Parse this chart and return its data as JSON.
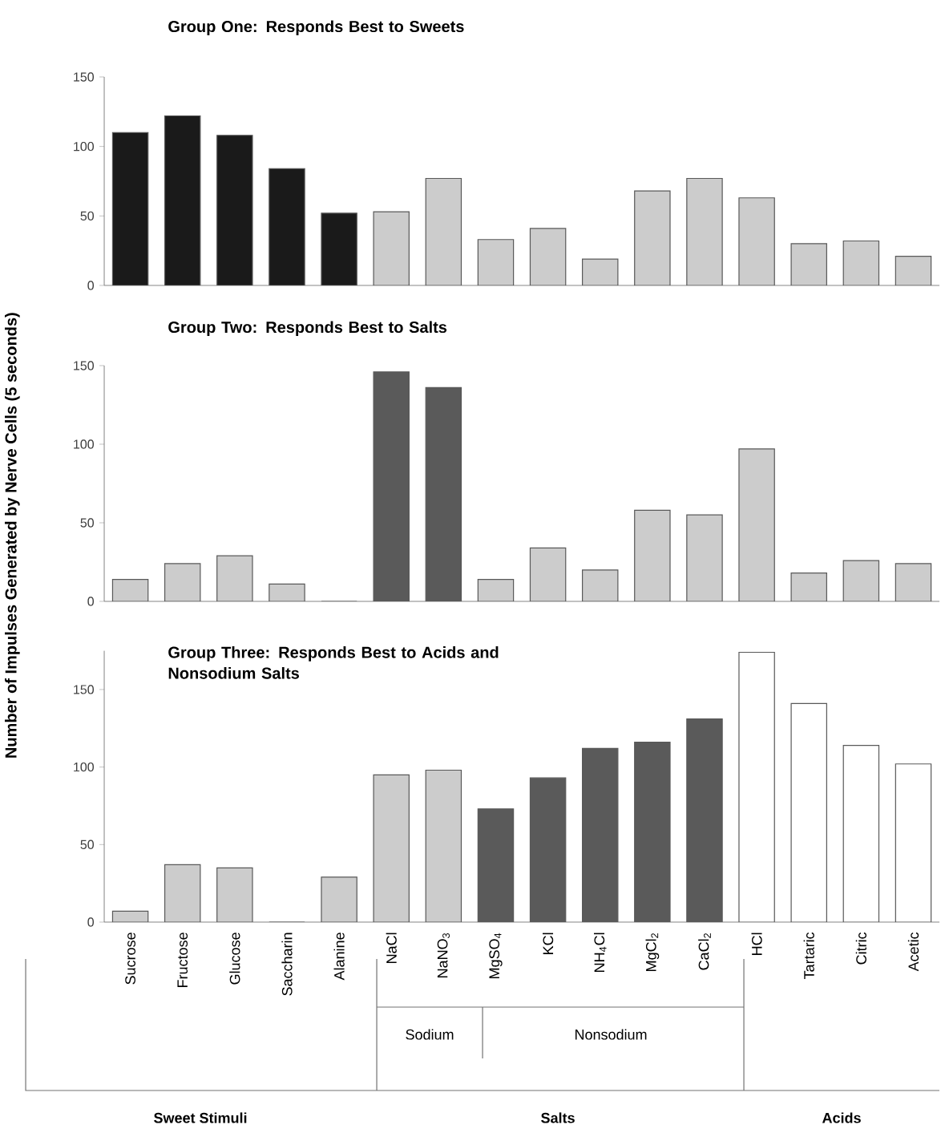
{
  "chart_data": [
    {
      "type": "bar",
      "title": "Group One: Responds Best to Sweets",
      "values": [
        110,
        122,
        108,
        84,
        52,
        53,
        77,
        33,
        41,
        19,
        68,
        77,
        63,
        30,
        32,
        21
      ],
      "colors": [
        "#1a1a1a",
        "#1a1a1a",
        "#1a1a1a",
        "#1a1a1a",
        "#1a1a1a",
        "#cccccc",
        "#cccccc",
        "#cccccc",
        "#cccccc",
        "#cccccc",
        "#cccccc",
        "#cccccc",
        "#cccccc",
        "#cccccc",
        "#cccccc",
        "#cccccc"
      ],
      "ylim": [
        0,
        150
      ],
      "yticks": [
        0,
        50,
        100,
        150
      ],
      "tick_labels": "y"
    },
    {
      "type": "bar",
      "title": "Group Two: Responds Best to Salts",
      "ylabel": "Number of Impulses Generated by Nerve Cells (5 seconds)",
      "values": [
        14,
        24,
        29,
        11,
        0,
        146,
        136,
        14,
        34,
        20,
        58,
        55,
        97,
        18,
        26,
        24
      ],
      "colors": [
        "#cccccc",
        "#cccccc",
        "#cccccc",
        "#cccccc",
        "#cccccc",
        "#5a5a5a",
        "#5a5a5a",
        "#cccccc",
        "#cccccc",
        "#cccccc",
        "#cccccc",
        "#cccccc",
        "#cccccc",
        "#cccccc",
        "#cccccc",
        "#cccccc"
      ],
      "ylim": [
        0,
        150
      ],
      "yticks": [
        0,
        50,
        100,
        150
      ],
      "tick_labels": "y"
    },
    {
      "type": "bar",
      "title": "Group Three: Responds Best to Acids and Nonsodium Salts",
      "categories": [
        "Sucrose",
        "Fructose",
        "Glucose",
        "Saccharin",
        "Alanine",
        "NaCl",
        "NaNO$_{3}$",
        "MgSO$_{4}$",
        "KCl",
        "NH$_{4}$Cl",
        "MgCl$_{2}$",
        "CaCl$_{2}$",
        "HCl",
        "Tartaric",
        "Citric",
        "Acetic"
      ],
      "values": [
        7,
        37,
        35,
        0,
        29,
        95,
        98,
        73,
        93,
        112,
        116,
        131,
        174,
        141,
        114,
        102
      ],
      "colors": [
        "#cccccc",
        "#cccccc",
        "#cccccc",
        "#cccccc",
        "#cccccc",
        "#cccccc",
        "#cccccc",
        "#5a5a5a",
        "#5a5a5a",
        "#5a5a5a",
        "#5a5a5a",
        "#5a5a5a",
        "#ffffff",
        "#ffffff",
        "#ffffff",
        "#ffffff"
      ],
      "ylim": [
        0,
        175
      ],
      "yticks": [
        0,
        50,
        100,
        150
      ],
      "annotations": [
        "Sodium",
        "Nonsodium",
        "Sweet Stimuli",
        "Salts",
        "Acids"
      ]
    }
  ]
}
